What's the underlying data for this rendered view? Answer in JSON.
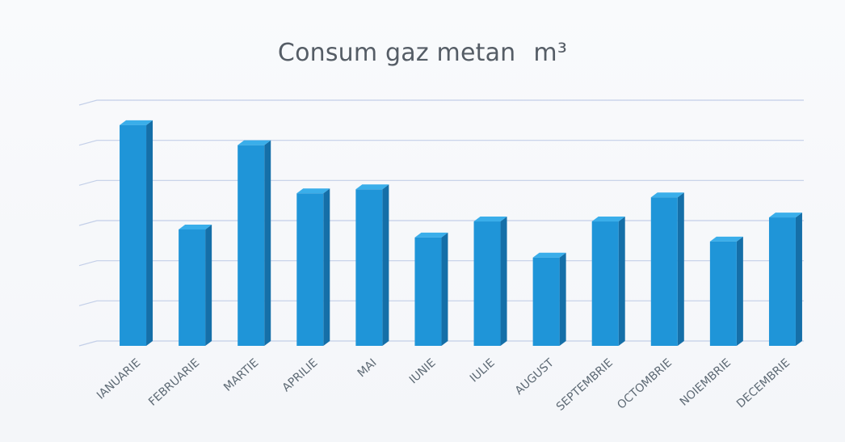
{
  "chart_data": {
    "type": "bar",
    "title": "Consum gaz metan",
    "title_unit": "m³",
    "categories": [
      "IANUARIE",
      "FEBRUARIE",
      "MARTIE",
      "APRILIE",
      "MAI",
      "IUNIE",
      "IULIE",
      "AUGUST",
      "SEPTEMBRIE",
      "OCTOMBRIE",
      "NOIEMBRIE",
      "DECEMBRIE"
    ],
    "values": [
      5.5,
      2.9,
      5.0,
      3.8,
      3.9,
      2.7,
      3.1,
      2.2,
      3.1,
      3.7,
      2.6,
      3.2
    ],
    "ylim": [
      0,
      6
    ],
    "yticks_shown": false,
    "grid": true,
    "legend": "none",
    "bar_color": "#1f95d8",
    "grid_color": "#c3cfe8"
  }
}
